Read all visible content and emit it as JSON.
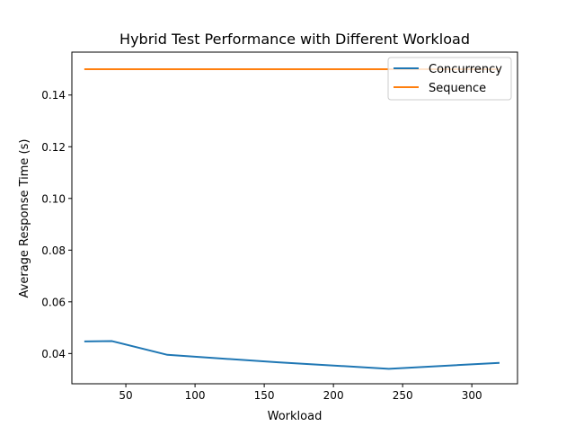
{
  "chart_data": {
    "type": "line",
    "title": "Hybrid Test Performance with Different Workload",
    "xlabel": "Workload",
    "ylabel": "Average Response Time (s)",
    "xlim": [
      11,
      333
    ],
    "ylim": [
      0.0283,
      0.1566
    ],
    "xticks": [
      50,
      100,
      150,
      200,
      250,
      300
    ],
    "yticks": [
      0.04,
      0.06,
      0.08,
      0.1,
      0.12,
      0.14
    ],
    "ytick_labels": [
      "0.04",
      "0.06",
      "0.08",
      "0.10",
      "0.12",
      "0.14"
    ],
    "grid": false,
    "legend_position": "top-right",
    "series": [
      {
        "name": "Concurrency",
        "color": "#1f77b4",
        "x": [
          20,
          40,
          80,
          160,
          240,
          320
        ],
        "y": [
          0.0447,
          0.0448,
          0.0395,
          0.0366,
          0.0341,
          0.0364
        ]
      },
      {
        "name": "Sequence",
        "color": "#ff7f0e",
        "x": [
          20,
          40,
          80,
          160,
          240,
          320
        ],
        "y": [
          0.15,
          0.15,
          0.15,
          0.15,
          0.15,
          0.15
        ]
      }
    ]
  }
}
